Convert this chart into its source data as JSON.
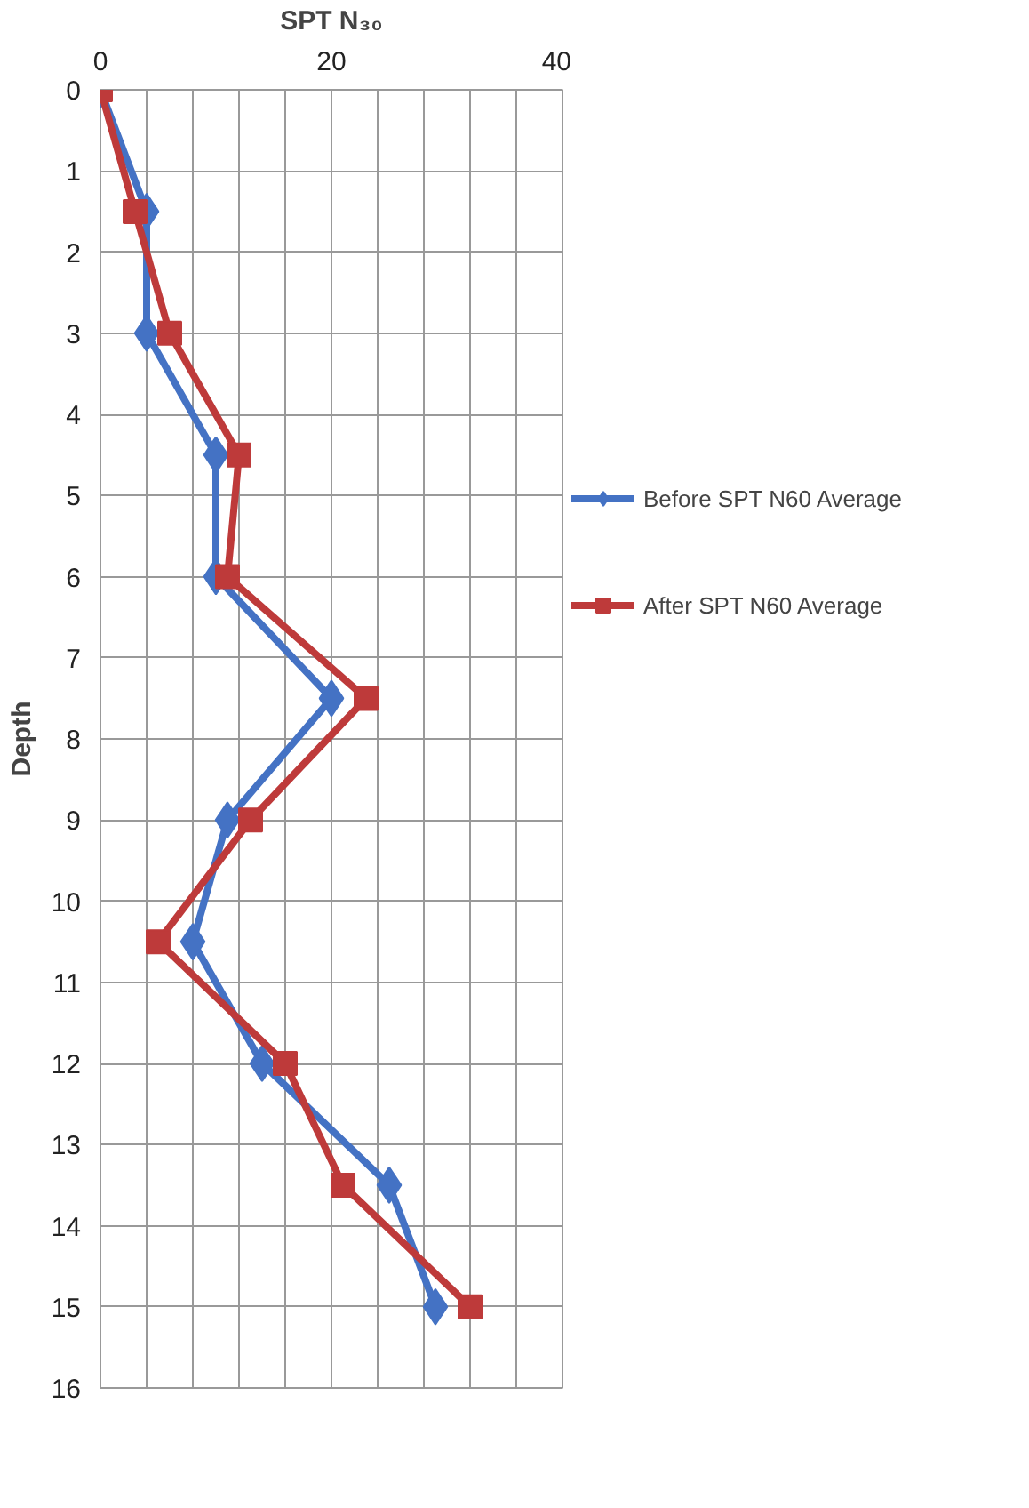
{
  "chart_data": {
    "type": "line",
    "orientation": "horizontal",
    "xlabel": "SPT N₃₀",
    "ylabel": "Depth",
    "x": [
      0,
      1.5,
      3,
      4.5,
      6,
      7.5,
      9,
      10.5,
      12,
      13.5,
      15
    ],
    "series": [
      {
        "name": "Before SPT N60 Average",
        "color": "#4472c4",
        "marker": "diamond",
        "values": [
          0,
          4,
          4,
          10,
          10,
          20,
          11,
          8,
          14,
          25,
          29
        ]
      },
      {
        "name": "After SPT N60 Average",
        "color": "#be3a3a",
        "marker": "square",
        "values": [
          0,
          3,
          6,
          12,
          11,
          23,
          13,
          5,
          16,
          21,
          32
        ]
      }
    ],
    "xlim": [
      0,
      40
    ],
    "xticks": [
      0,
      {
        "value": 4,
        "label": null
      },
      {
        "value": 8,
        "label": null
      },
      {
        "value": 12,
        "label": null
      },
      {
        "value": 16,
        "label": null
      },
      20,
      {
        "value": 24,
        "label": null
      },
      {
        "value": 28,
        "label": null
      },
      {
        "value": 32,
        "label": null
      },
      {
        "value": 36,
        "label": null
      },
      40
    ],
    "ylim": [
      16,
      0
    ],
    "yticks": [
      0,
      1,
      2,
      3,
      4,
      5,
      6,
      7,
      8,
      9,
      10,
      11,
      12,
      13,
      14,
      15,
      16
    ],
    "grid": true,
    "legend": "right",
    "line_style": "solid"
  }
}
